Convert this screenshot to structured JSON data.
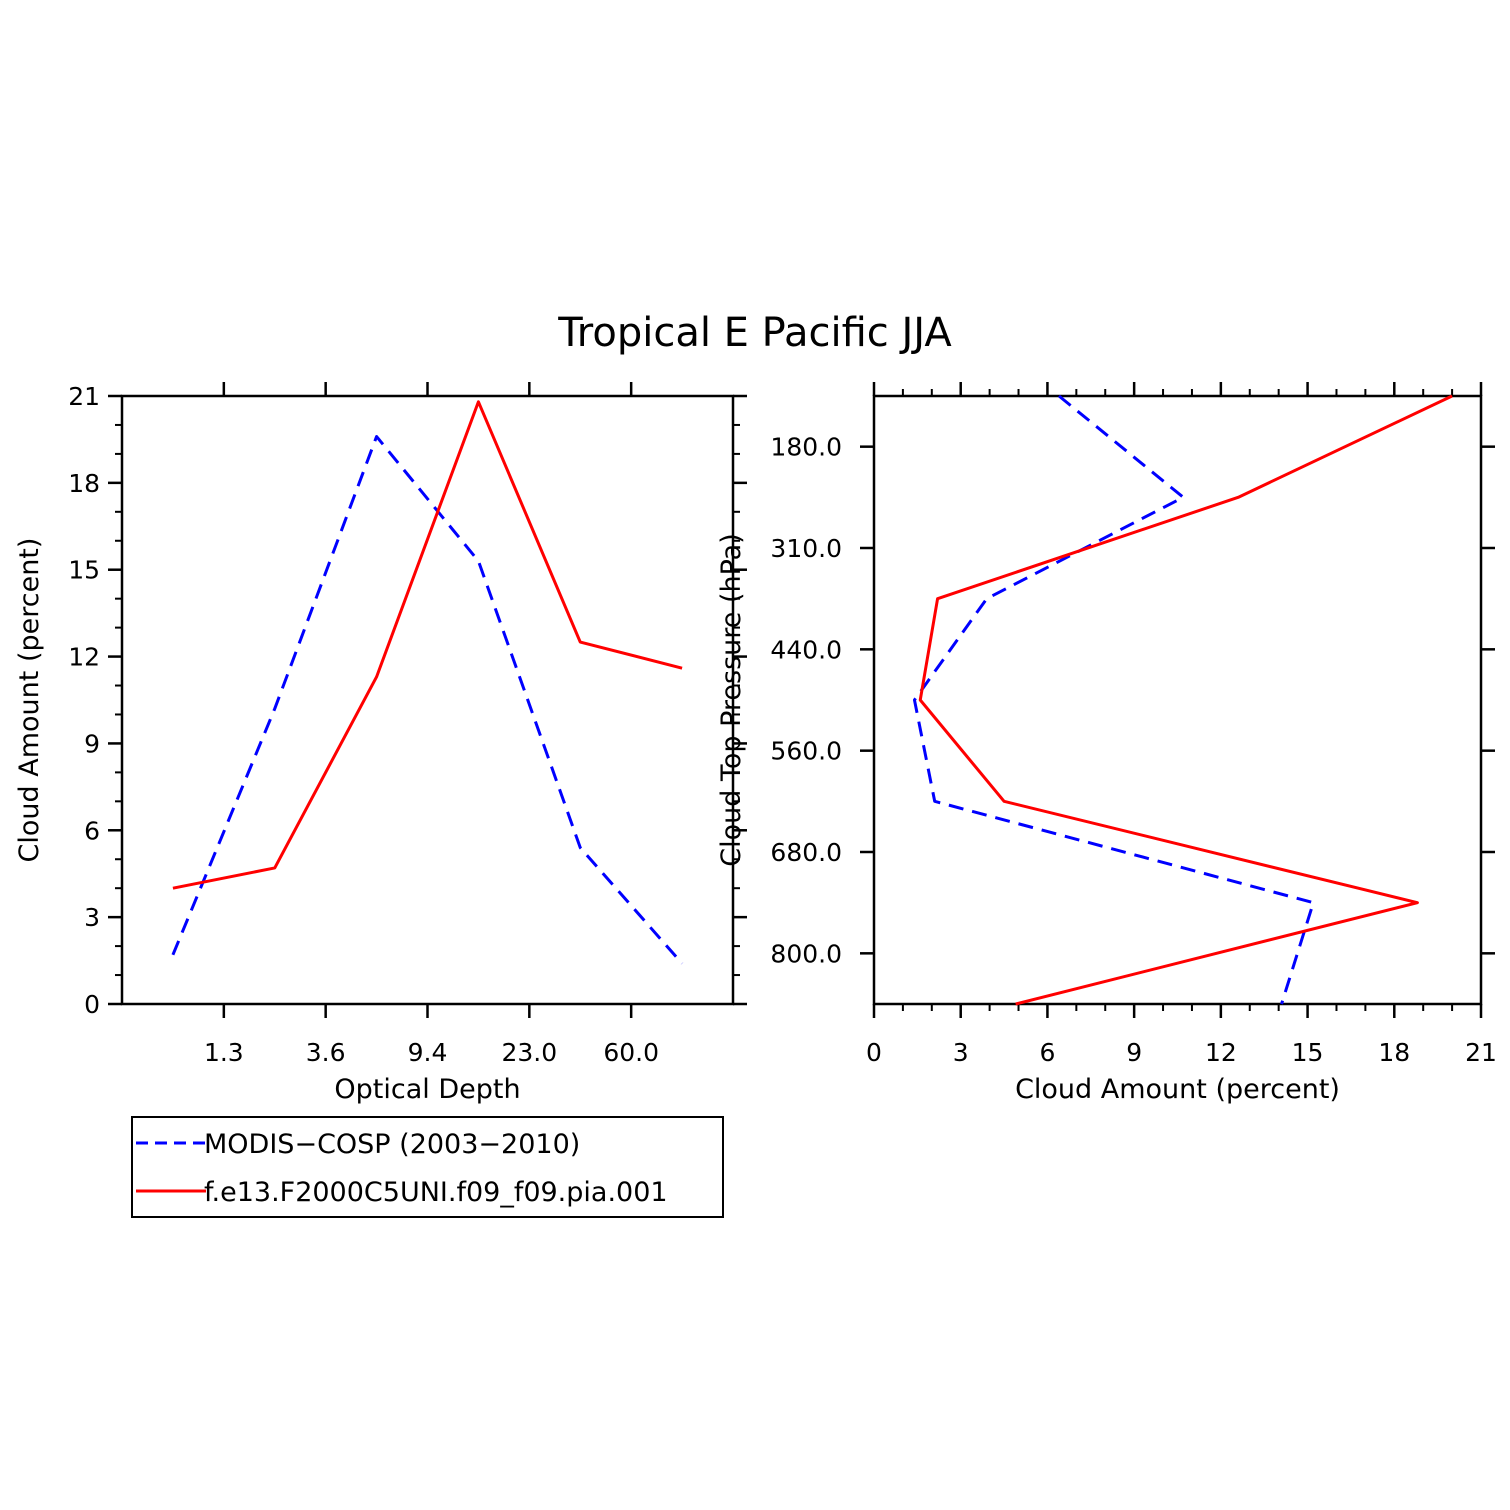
{
  "title": "Tropical E Pacific JJA",
  "colors": {
    "obs": "#0000ff",
    "model": "#ff0000",
    "axis": "#000000"
  },
  "legend": {
    "placement": "bottom-left",
    "entries": [
      {
        "label": "MODIS−COSP (2003−2010)",
        "series": "obs",
        "style": "dashed"
      },
      {
        "label": "f.e13.F2000C5UNI.f09_f09.pia.001",
        "series": "model",
        "style": "solid"
      }
    ]
  },
  "chart_data": [
    {
      "type": "line",
      "xlabel": "Optical Depth",
      "ylabel": "Cloud Amount (percent)",
      "x_tick_labels": [
        "1.3",
        "3.6",
        "9.4",
        "23.0",
        "60.0"
      ],
      "y_ticks": [
        0,
        3,
        6,
        9,
        12,
        15,
        18,
        21
      ],
      "ylim": [
        0,
        21
      ],
      "x_bins": 7,
      "grid": false,
      "series": [
        {
          "key": "obs",
          "style": "dashed",
          "values": [
            1.7,
            10.2,
            19.6,
            15.3,
            5.4,
            1.4
          ]
        },
        {
          "key": "model",
          "style": "solid",
          "values": [
            4.0,
            4.7,
            11.3,
            20.8,
            12.5,
            11.6
          ]
        }
      ]
    },
    {
      "type": "line",
      "xlabel": "Cloud Amount (percent)",
      "ylabel": "Cloud Top Pressure (hPa)",
      "x_ticks": [
        0,
        3,
        6,
        9,
        12,
        15,
        18,
        21
      ],
      "xlim": [
        0,
        21
      ],
      "y_tick_labels": [
        "180.0",
        "310.0",
        "440.0",
        "560.0",
        "680.0",
        "800.0"
      ],
      "y_levels": 6,
      "grid": false,
      "series": [
        {
          "key": "obs",
          "style": "dashed",
          "values": [
            6.4,
            10.7,
            3.9,
            1.4,
            2.1,
            15.2,
            14.1
          ]
        },
        {
          "key": "model",
          "style": "solid",
          "values": [
            20.0,
            12.6,
            2.2,
            1.6,
            4.5,
            18.8,
            4.9
          ]
        }
      ]
    }
  ]
}
